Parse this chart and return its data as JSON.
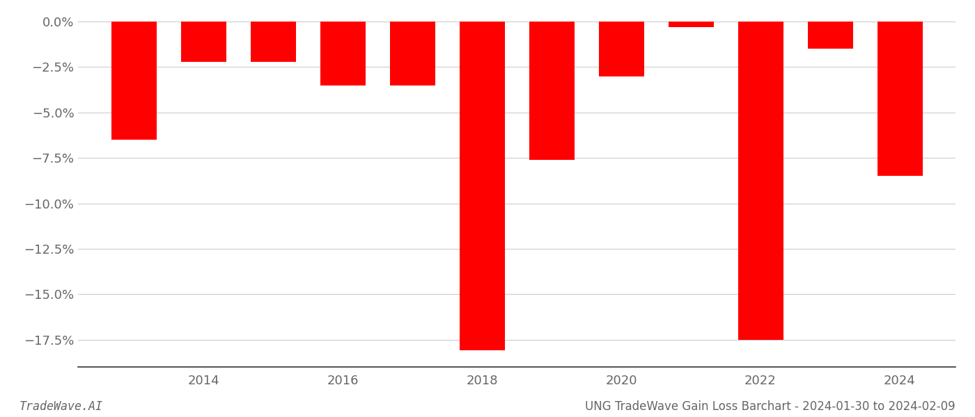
{
  "years": [
    2013,
    2014,
    2015,
    2016,
    2017,
    2018,
    2019,
    2020,
    2021,
    2022,
    2023,
    2024
  ],
  "values": [
    -0.065,
    -0.022,
    -0.022,
    -0.035,
    -0.035,
    -0.181,
    -0.076,
    -0.03,
    -0.003,
    -0.175,
    -0.015,
    -0.085
  ],
  "bar_color": "#ff0000",
  "title": "UNG TradeWave Gain Loss Barchart - 2024-01-30 to 2024-02-09",
  "watermark": "TradeWave.AI",
  "ylim_min": -0.19,
  "ylim_max": 0.005,
  "background_color": "#ffffff",
  "grid_color": "#cccccc",
  "xtick_labels": [
    "",
    "2014",
    "",
    "2016",
    "",
    "2018",
    "",
    "2020",
    "",
    "2022",
    "",
    "2024"
  ],
  "ytick_values": [
    0.0,
    -0.025,
    -0.05,
    -0.075,
    -0.1,
    -0.125,
    -0.15,
    -0.175
  ],
  "ytick_labels": [
    "0.0%",
    "−2.5%",
    "−5.0%",
    "−7.5%",
    "−10.0%",
    "−12.5%",
    "−15.0%",
    "−17.5%"
  ],
  "bar_width": 0.65
}
